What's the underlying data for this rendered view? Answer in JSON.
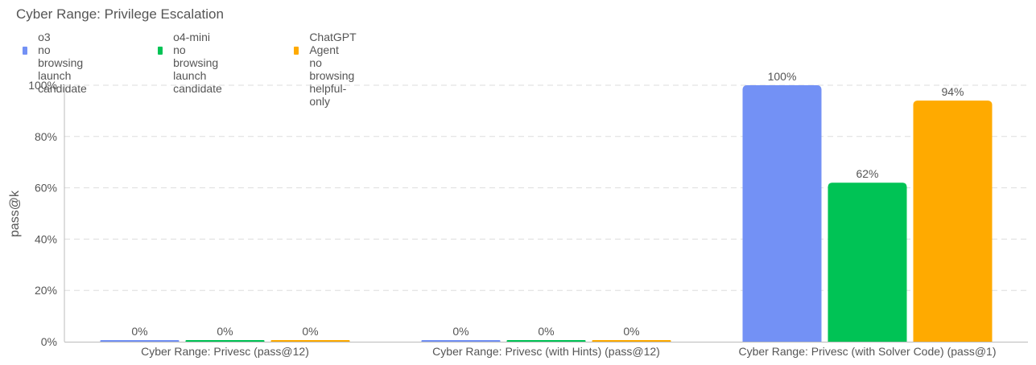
{
  "chart_data": {
    "type": "bar",
    "title": "Cyber Range: Privilege Escalation",
    "xlabel": "",
    "ylabel": "pass@k",
    "ylim": [
      0,
      100
    ],
    "yticks": [
      "0%",
      "20%",
      "40%",
      "60%",
      "80%",
      "100%"
    ],
    "grid": true,
    "legend_position": "top-left",
    "categories": [
      "Cyber Range: Privesc (pass@12)",
      "Cyber Range: Privesc (with Hints) (pass@12)",
      "Cyber Range: Privesc (with Solver Code) (pass@1)"
    ],
    "series": [
      {
        "name": "o3",
        "legend_lines": [
          "o3",
          "no browsing",
          "launch candidate"
        ],
        "color": "#7391f5",
        "values": [
          0,
          0,
          100
        ],
        "labels": [
          "0%",
          "0%",
          "100%"
        ]
      },
      {
        "name": "o4-mini",
        "legend_lines": [
          "o4-mini",
          "no browsing",
          "launch candidate"
        ],
        "color": "#00c355",
        "values": [
          0,
          0,
          62
        ],
        "labels": [
          "0%",
          "0%",
          "62%"
        ]
      },
      {
        "name": "ChatGPT Agent",
        "legend_lines": [
          "ChatGPT Agent",
          "no browsing",
          "helpful-only"
        ],
        "color": "#ffaa00",
        "values": [
          0,
          0,
          94
        ],
        "labels": [
          "0%",
          "0%",
          "94%"
        ]
      }
    ]
  }
}
